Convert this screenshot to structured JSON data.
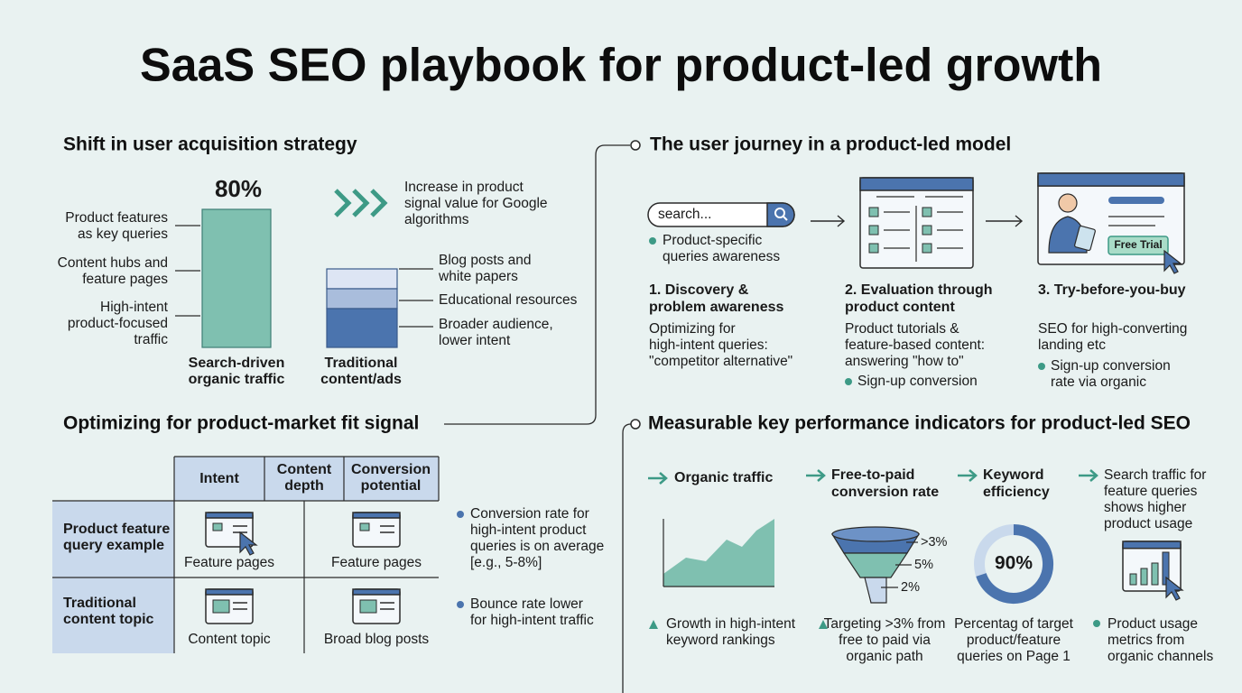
{
  "title": "SaaS SEO playbook for product-led growth",
  "acquisition": {
    "heading": "Shift in user acquisition strategy",
    "highlight": "80%",
    "left_labels": [
      [
        "Product features",
        "as key queries"
      ],
      [
        "Content hubs and",
        "feature pages"
      ],
      [
        "High-intent",
        "product-focused",
        "traffic"
      ]
    ],
    "signal_note": [
      "Increase in product",
      "signal value for Google",
      "algorithms"
    ],
    "right_labels": [
      [
        "Blog posts and",
        "white papers"
      ],
      [
        "Educational resources"
      ],
      [
        "Broader audience,",
        "lower intent"
      ]
    ],
    "bar_labels": [
      [
        "Search-driven",
        "organic traffic"
      ],
      [
        "Traditional",
        "content/ads"
      ]
    ]
  },
  "fit": {
    "heading": "Optimizing for product-market fit signal",
    "table": {
      "columns": [
        [
          "Intent"
        ],
        [
          "Content",
          "depth"
        ],
        [
          "Conversion",
          "potential"
        ]
      ],
      "rows": [
        {
          "label": [
            "Product feature",
            "query example"
          ],
          "cells": [
            "Feature pages",
            "Feature pages"
          ]
        },
        {
          "label": [
            "Traditional",
            "content topic"
          ],
          "cells": [
            "Content topic",
            "Broad blog posts"
          ]
        }
      ]
    },
    "notes": [
      [
        "Conversion rate for",
        "high-intent product",
        "queries is on average",
        "[e.g., 5-8%]"
      ],
      [
        "Bounce rate lower",
        "for high-intent traffic"
      ]
    ]
  },
  "journey": {
    "heading": "The user journey in a product-led model",
    "search_placeholder": "search...",
    "cta": "Free Trial",
    "steps": [
      {
        "title": [
          "1. Discovery &",
          "problem awareness"
        ],
        "description": [
          "Optimizing for",
          "high-intent queries:",
          "\"competitor alternative\""
        ],
        "bullet": [
          "Product-specific",
          "queries awareness"
        ]
      },
      {
        "title": [
          "2. Evaluation through",
          "product content"
        ],
        "description": [
          "Product tutorials &",
          "feature-based content:",
          "answering \"how to\""
        ],
        "bullet": [
          "Sign-up conversion"
        ]
      },
      {
        "title": [
          "3. Try-before-you-buy"
        ],
        "description": [
          "SEO for high-converting",
          "landing etc"
        ],
        "bullet": [
          "Sign-up conversion",
          "rate via organic"
        ]
      }
    ]
  },
  "kpis": {
    "heading": "Measurable key performance indicators for product-led SEO",
    "items": [
      {
        "title": [
          "Organic traffic"
        ],
        "footnote": [
          "Growth in high-intent",
          "keyword rankings"
        ]
      },
      {
        "title": [
          "Free-to-paid",
          "conversion rate"
        ],
        "funnel_labels": [
          ">3%",
          "5%",
          "2%"
        ],
        "footnote": [
          "Targeting >3% from",
          "free to paid via",
          "organic path"
        ]
      },
      {
        "title": [
          "Keyword",
          "efficiency"
        ],
        "figure": "90%",
        "footnote": [
          "Percentag of target",
          "product/feature",
          "queries on Page 1"
        ]
      },
      {
        "title": [
          "Search traffic for",
          "feature queries",
          "shows higher",
          "product usage"
        ],
        "footnote": [
          "Product usage",
          "metrics from",
          "organic channels"
        ]
      }
    ]
  }
}
